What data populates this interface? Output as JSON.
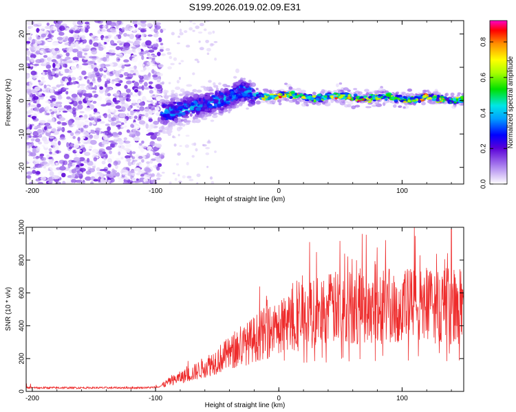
{
  "title": "S199.2026.019.02.09.E31",
  "chart_data": [
    {
      "type": "heatmap",
      "name": "spectrogram",
      "xlabel": "Height of straight line (km)",
      "ylabel": "Frequency (Hz)",
      "xlim": [
        -205,
        150
      ],
      "ylim": [
        -25,
        24
      ],
      "xticks": [
        -200,
        -100,
        0,
        100
      ],
      "yticks": [
        -20,
        -10,
        0,
        10,
        20
      ],
      "colorbar": {
        "label": "Normalized spectral amplitude",
        "range": [
          0.0,
          0.92
        ],
        "ticks": [
          0.0,
          0.2,
          0.4,
          0.6,
          0.8
        ]
      },
      "regions": [
        {
          "x_range": [
            -205,
            -95
          ],
          "description_value": "broadband noise",
          "amplitude_range": [
            0.0,
            0.2
          ]
        },
        {
          "x_range": [
            -95,
            -20
          ],
          "center_freq_hz": [
            -4,
            3
          ],
          "amplitude_range": [
            0.1,
            0.45
          ]
        },
        {
          "x_range": [
            -20,
            150
          ],
          "center_freq_hz": [
            0,
            2
          ],
          "amplitude_range": [
            0.2,
            0.9
          ]
        }
      ]
    },
    {
      "type": "line",
      "name": "snr",
      "xlabel": "Height of straight line (km)",
      "ylabel": "SNR (10 * v/v)",
      "xlim": [
        -205,
        150
      ],
      "ylim": [
        0,
        1000
      ],
      "xticks": [
        -200,
        -100,
        0,
        100
      ],
      "yticks": [
        0,
        200,
        400,
        600,
        800,
        1000
      ],
      "color": "#ee2b2b",
      "x": [
        -205,
        -180,
        -150,
        -120,
        -100,
        -95,
        -90,
        -80,
        -70,
        -60,
        -50,
        -40,
        -30,
        -20,
        -10,
        0,
        10,
        20,
        30,
        40,
        50,
        60,
        70,
        80,
        90,
        100,
        110,
        120,
        130,
        140,
        150
      ],
      "y": [
        22,
        22,
        22,
        22,
        24,
        35,
        55,
        85,
        110,
        150,
        190,
        230,
        270,
        320,
        360,
        390,
        420,
        450,
        480,
        500,
        510,
        515,
        520,
        520,
        515,
        520,
        525,
        520,
        525,
        520,
        520
      ],
      "peaks": [
        {
          "x": 25,
          "y": 910
        },
        {
          "x": 110,
          "y": 1000
        },
        {
          "x": 140,
          "y": 990
        }
      ]
    }
  ]
}
